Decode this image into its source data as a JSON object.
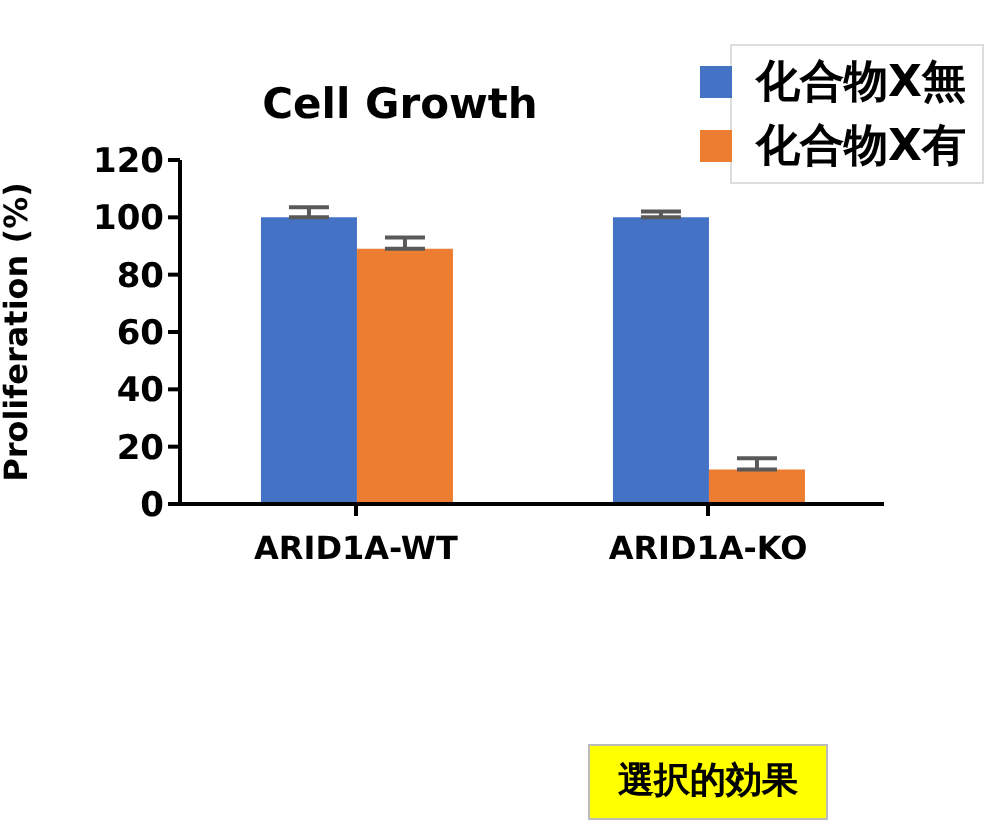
{
  "chart_data": {
    "type": "bar",
    "title": "Cell Growth",
    "ylabel": "Proliferation (%)",
    "categories": [
      "ARID1A-WT",
      "ARID1A-KO"
    ],
    "series": [
      {
        "name": "化合物X無",
        "color": "#4472c4",
        "values": [
          100,
          100
        ],
        "errors": [
          [
            100,
            103.5
          ],
          [
            100,
            102
          ]
        ]
      },
      {
        "name": "化合物X有",
        "color": "#ed7d31",
        "values": [
          89,
          12
        ],
        "errors": [
          [
            89,
            93
          ],
          [
            12,
            16
          ]
        ]
      }
    ],
    "ylim": [
      0,
      120
    ],
    "yticks": [
      0,
      20,
      40,
      60,
      80,
      100,
      120
    ],
    "legend": "top right",
    "annotations": [
      "選択的効果"
    ]
  }
}
